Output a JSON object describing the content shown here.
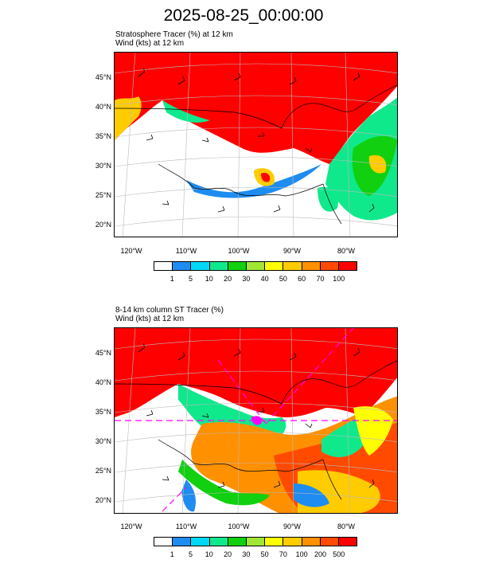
{
  "title": "2025-08-25_00:00:00",
  "panels": [
    {
      "title_line1": "Stratosphere Tracer   (%)     at   12 km",
      "title_line2": "Wind   (kts)     at   12 km",
      "lat_labels": [
        "45°N",
        "40°N",
        "35°N",
        "30°N",
        "25°N",
        "20°N"
      ],
      "lon_labels": [
        "120°W",
        "110°W",
        "100°W",
        "90°W",
        "80°W"
      ],
      "colorbar_labels": [
        "1",
        "5",
        "10",
        "20",
        "30",
        "40",
        "50",
        "60",
        "70",
        "100"
      ],
      "colorbar_colors": [
        "#ffffff",
        "#1e8cf0",
        "#00d8f8",
        "#10e88c",
        "#10d010",
        "#a0e632",
        "#ffff00",
        "#ffcc00",
        "#ff9000",
        "#ff4a00",
        "#ff0000"
      ]
    },
    {
      "title_line1": "8-14 km column ST Tracer   (%)",
      "title_line2": "Wind   (kts)     at   12 km",
      "lat_labels": [
        "45°N",
        "40°N",
        "35°N",
        "30°N",
        "25°N",
        "20°N"
      ],
      "lon_labels": [
        "120°W",
        "110°W",
        "100°W",
        "90°W",
        "80°W"
      ],
      "colorbar_labels": [
        "1",
        "5",
        "10",
        "20",
        "30",
        "50",
        "70",
        "100",
        "200",
        "500"
      ],
      "colorbar_colors": [
        "#ffffff",
        "#1e8cf0",
        "#00d8f8",
        "#10e88c",
        "#10d010",
        "#a0e632",
        "#ffff00",
        "#ffcc00",
        "#ff9000",
        "#ff4a00",
        "#ff0000"
      ]
    }
  ]
}
